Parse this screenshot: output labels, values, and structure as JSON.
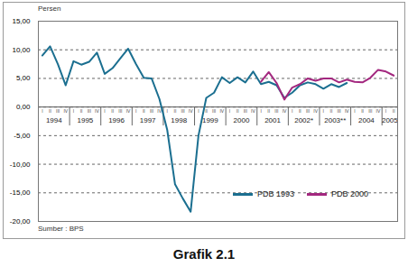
{
  "chart_data": {
    "type": "line",
    "title": "Grafik 2.1",
    "y_label": "Persen",
    "source": "Sumber : BPS",
    "categories": [
      "I",
      "II",
      "III",
      "IV",
      "I",
      "II",
      "III",
      "IV",
      "I",
      "II",
      "III",
      "IV",
      "I",
      "II",
      "III",
      "IV",
      "I",
      "II",
      "III",
      "IV",
      "I",
      "II",
      "III",
      "IV",
      "I",
      "II",
      "III",
      "IV",
      "I",
      "II",
      "III",
      "IV",
      "I",
      "II",
      "III",
      "IV",
      "I",
      "II",
      "III",
      "IV",
      "I",
      "II",
      "III",
      "IV",
      "I",
      "II"
    ],
    "years": [
      "1994",
      "1995",
      "1996",
      "1997",
      "1998",
      "1999",
      "2000",
      "2001",
      "2002*",
      "2003**",
      "2004",
      "2005"
    ],
    "series": [
      {
        "name": "PDB 1993",
        "color": "#1b6f90",
        "values": [
          9.0,
          10.6,
          7.5,
          3.8,
          8.0,
          7.4,
          7.9,
          9.5,
          5.8,
          6.8,
          8.5,
          10.2,
          7.5,
          5.1,
          5.0,
          1.4,
          -4.0,
          -13.5,
          -16.0,
          -18.3,
          -5.0,
          1.6,
          2.5,
          5.2,
          4.2,
          5.2,
          4.3,
          6.2,
          4.0,
          4.4,
          3.8,
          1.6,
          2.5,
          3.8,
          4.3,
          4.0,
          3.2,
          4.0,
          3.5,
          4.2,
          null,
          null,
          null,
          null,
          null,
          null
        ]
      },
      {
        "name": "PDB 2000",
        "color": "#a3287f",
        "values": [
          null,
          null,
          null,
          null,
          null,
          null,
          null,
          null,
          null,
          null,
          null,
          null,
          null,
          null,
          null,
          null,
          null,
          null,
          null,
          null,
          null,
          null,
          null,
          null,
          null,
          null,
          null,
          null,
          4.4,
          6.1,
          4.2,
          1.3,
          3.4,
          4.0,
          5.0,
          4.6,
          5.0,
          5.0,
          4.3,
          4.8,
          4.4,
          4.3,
          5.1,
          6.5,
          6.2,
          5.5
        ]
      }
    ],
    "ylim": [
      -20,
      15
    ],
    "yticks": [
      {
        "value": -20,
        "label": "-20,00"
      },
      {
        "value": -15,
        "label": "-15,00"
      },
      {
        "value": -10,
        "label": "-10,00"
      },
      {
        "value": -5,
        "label": "-5,00"
      },
      {
        "value": 0,
        "label": "0,00"
      },
      {
        "value": 5,
        "label": "5,00"
      },
      {
        "value": 10,
        "label": "10,00"
      },
      {
        "value": 15,
        "label": "15,00"
      }
    ],
    "grid": true,
    "legend": "bottom-right"
  }
}
